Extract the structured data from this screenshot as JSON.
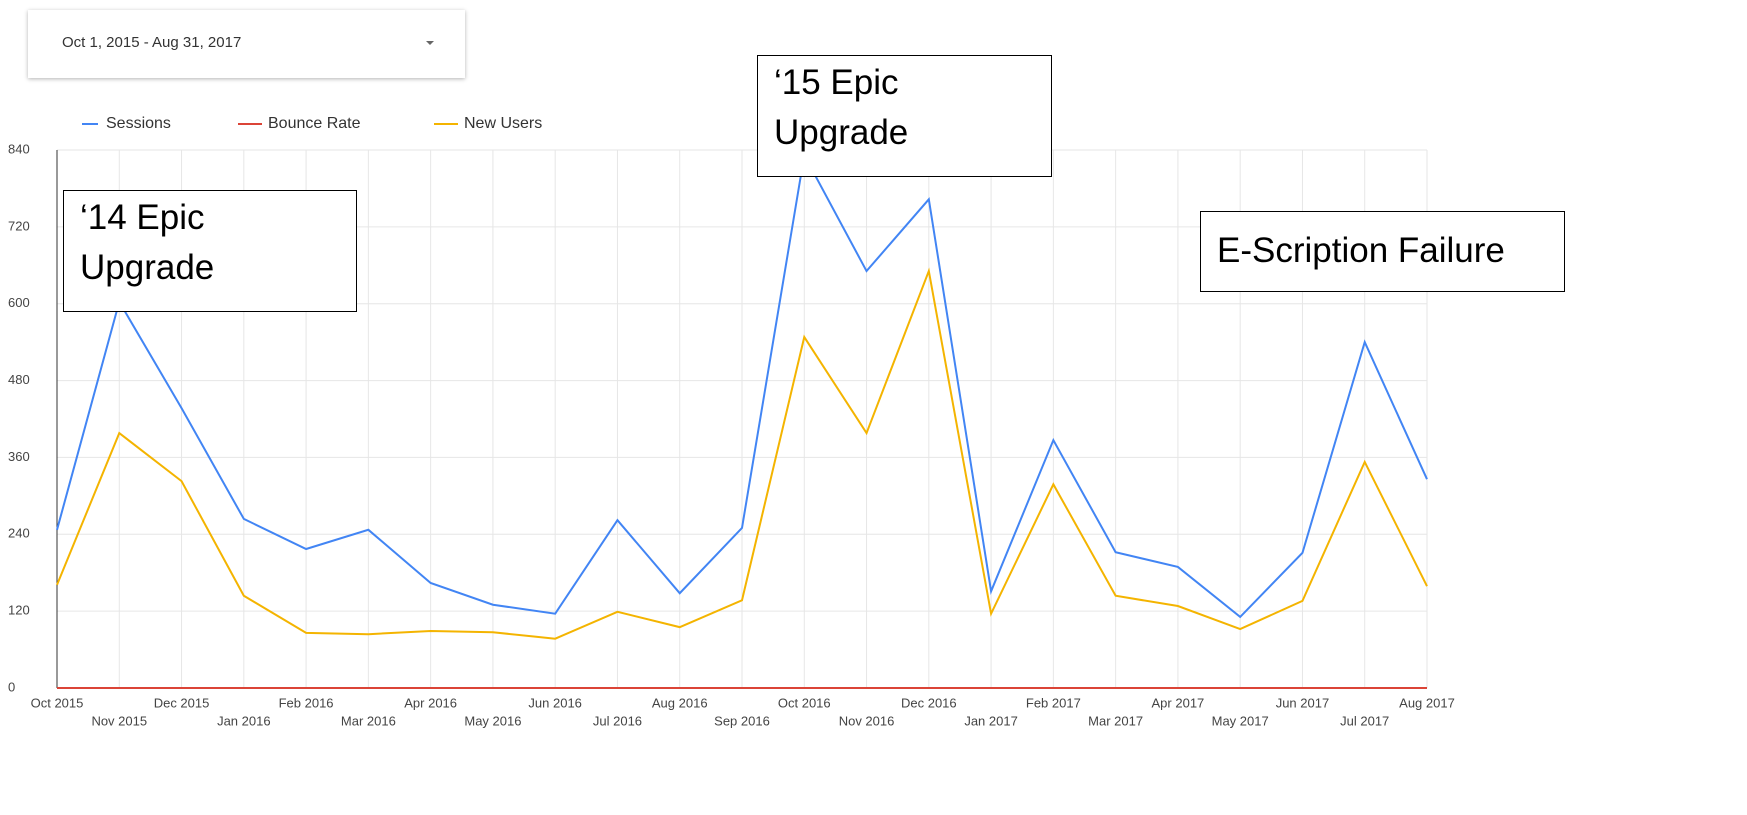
{
  "date_picker": {
    "range": "Oct 1, 2015 - Aug 31, 2017"
  },
  "chart_data": {
    "type": "line",
    "categories": [
      "Oct 2015",
      "Nov 2015",
      "Dec 2015",
      "Jan 2016",
      "Feb 2016",
      "Mar 2016",
      "Apr 2016",
      "May 2016",
      "Jun 2016",
      "Jul 2016",
      "Aug 2016",
      "Sep 2016",
      "Oct 2016",
      "Nov 2016",
      "Dec 2016",
      "Jan 2017",
      "Feb 2017",
      "Mar 2017",
      "Apr 2017",
      "May 2017",
      "Jun 2017",
      "Jul 2017",
      "Aug 2017"
    ],
    "series": [
      {
        "name": "Sessions",
        "color": "#4285f4",
        "values": [
          247,
          603,
          437,
          264,
          217,
          247,
          164,
          130,
          116,
          262,
          148,
          250,
          832,
          651,
          763,
          151,
          387,
          212,
          189,
          111,
          211,
          540,
          326
        ]
      },
      {
        "name": "Bounce Rate",
        "color": "#db4437",
        "values": [
          0,
          0,
          0,
          0,
          0,
          0,
          0,
          0,
          0,
          0,
          0,
          0,
          0,
          0,
          0,
          0,
          0,
          0,
          0,
          0,
          0,
          0,
          0
        ]
      },
      {
        "name": "New Users",
        "color": "#f4b400",
        "values": [
          161,
          398,
          323,
          144,
          86,
          84,
          89,
          87,
          77,
          119,
          95,
          137,
          548,
          398,
          651,
          116,
          318,
          144,
          128,
          92,
          136,
          353,
          159
        ]
      }
    ],
    "ylim": [
      0,
      840
    ],
    "yticks": [
      0,
      120,
      240,
      360,
      480,
      600,
      720,
      840
    ],
    "grid": true,
    "annotations": [
      {
        "text": "‘14 Epic Upgrade"
      },
      {
        "text": "‘15 Epic Upgrade"
      },
      {
        "text": "E-Scription Failure"
      }
    ]
  }
}
